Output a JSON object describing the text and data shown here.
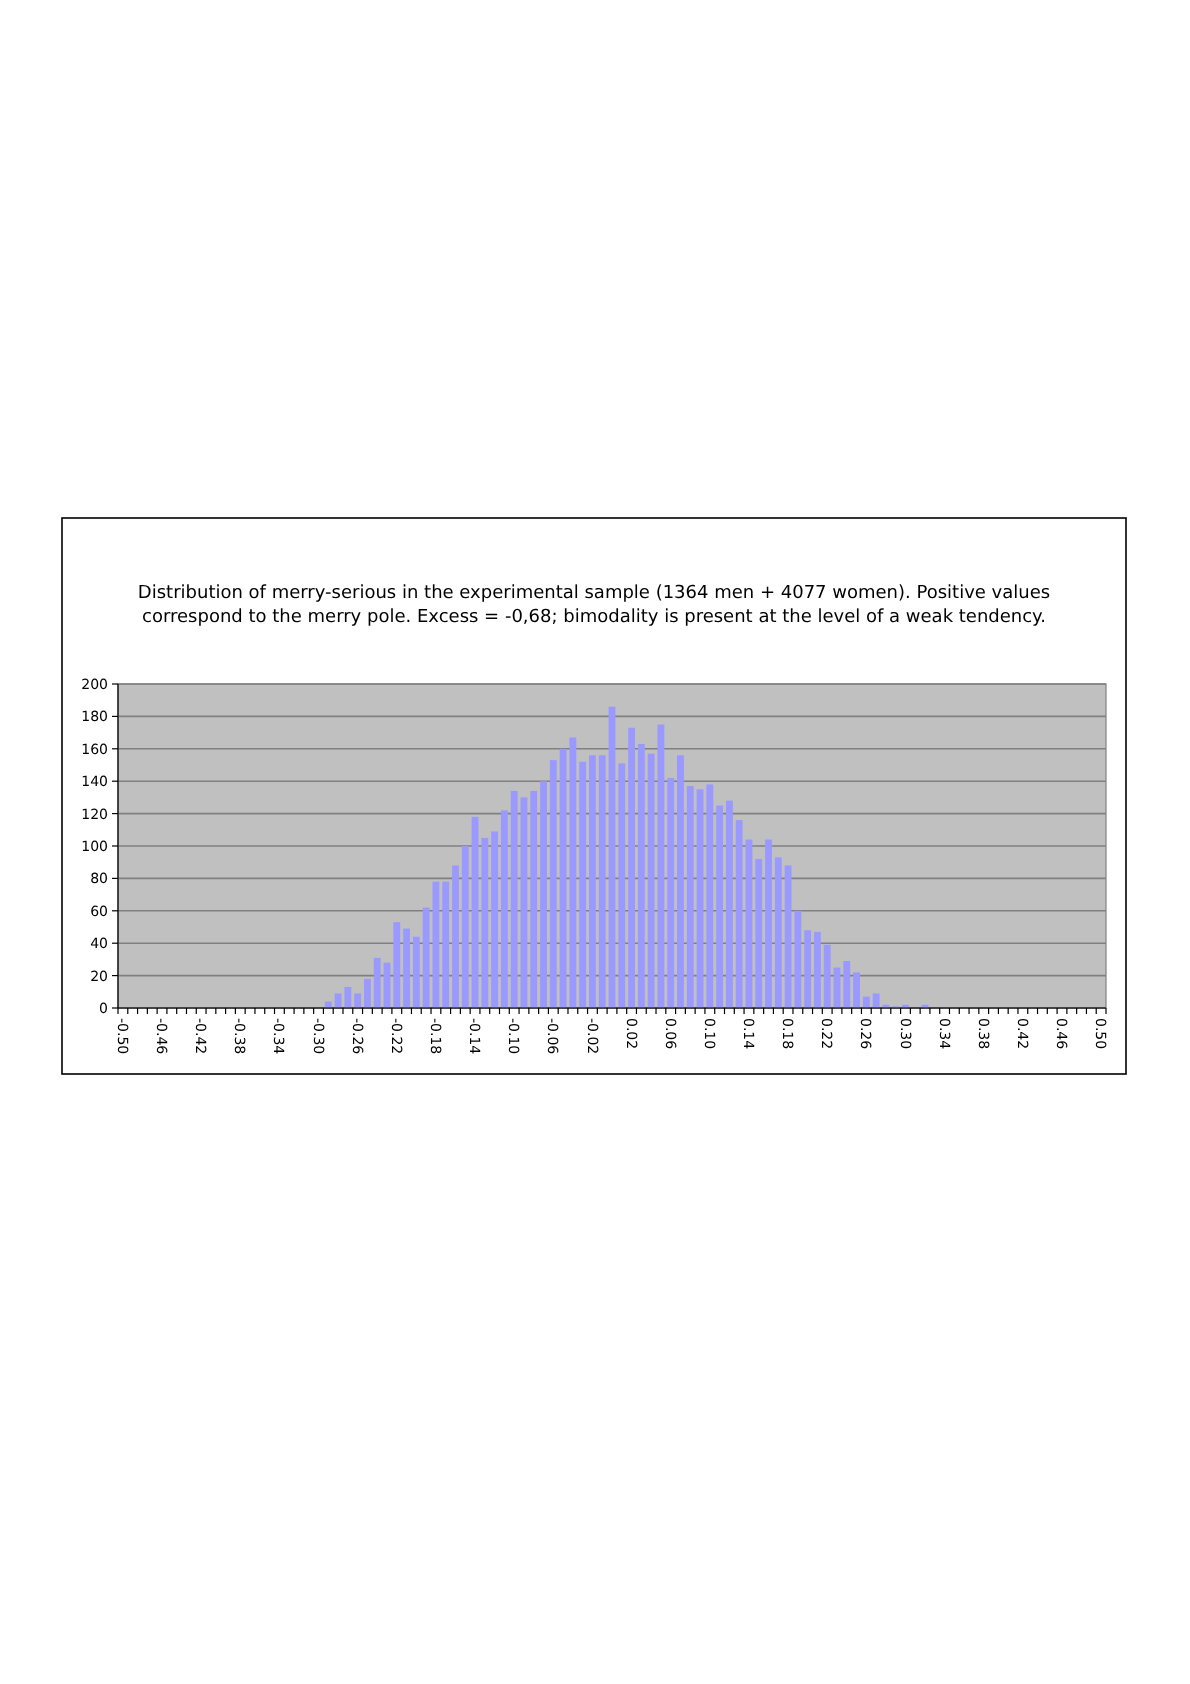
{
  "chart_data": {
    "type": "bar",
    "title": "Distribution of merry-serious in the experimental sample (1364 men + 4077 women). Positive values correspond to the merry pole. Excess = -0,68; bimodality is present at the level of a weak tendency.",
    "categories": [
      "-0.50",
      null,
      null,
      null,
      "-0.46",
      null,
      null,
      null,
      "-0.42",
      null,
      null,
      null,
      "-0.38",
      null,
      null,
      null,
      "-0.34",
      null,
      null,
      null,
      "-0.30",
      null,
      null,
      null,
      "-0.26",
      null,
      null,
      null,
      "-0.22",
      null,
      null,
      null,
      "-0.18",
      null,
      null,
      null,
      "-0.14",
      null,
      null,
      null,
      "-0.10",
      null,
      null,
      null,
      "-0.06",
      null,
      null,
      null,
      "-0.02",
      null,
      null,
      null,
      "0.02",
      null,
      null,
      null,
      "0.06",
      null,
      null,
      null,
      "0.10",
      null,
      null,
      null,
      "0.14",
      null,
      null,
      null,
      "0.18",
      null,
      null,
      null,
      "0.22",
      null,
      null,
      null,
      "0.26",
      null,
      null,
      null,
      "0.30",
      null,
      null,
      null,
      "0.34",
      null,
      null,
      null,
      "0.38",
      null,
      null,
      null,
      "0.42",
      null,
      null,
      null,
      "0.46",
      null,
      null,
      null,
      "0.50"
    ],
    "values": [
      0,
      0,
      0,
      0,
      0,
      0,
      0,
      0,
      0,
      0,
      0,
      0,
      0,
      0,
      0,
      0,
      0,
      0,
      0,
      0,
      0,
      4,
      9,
      13,
      9,
      18,
      31,
      28,
      53,
      49,
      44,
      62,
      78,
      78,
      88,
      100,
      118,
      105,
      109,
      122,
      134,
      130,
      134,
      140,
      153,
      160,
      167,
      152,
      156,
      156,
      186,
      151,
      173,
      163,
      157,
      175,
      142,
      156,
      137,
      135,
      138,
      125,
      128,
      116,
      104,
      92,
      104,
      93,
      88,
      60,
      48,
      47,
      39,
      25,
      29,
      22,
      7,
      9,
      2,
      1,
      2,
      0,
      2,
      0,
      0,
      0,
      0,
      0,
      0,
      0,
      0,
      0,
      0,
      0,
      0,
      0,
      0,
      0,
      0,
      0,
      0
    ],
    "color": "#9999ff",
    "ylim": [
      0,
      200
    ],
    "yticks": [
      0,
      20,
      40,
      60,
      80,
      100,
      120,
      140,
      160,
      180,
      200
    ],
    "grid": "y"
  }
}
